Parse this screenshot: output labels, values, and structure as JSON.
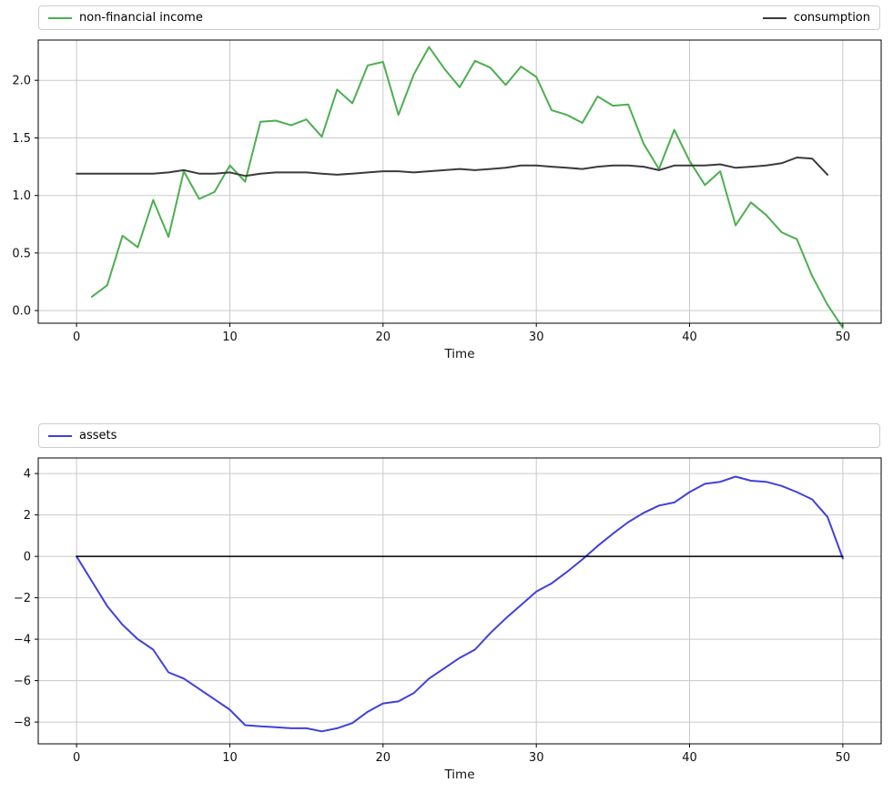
{
  "figure": {
    "background": "#ffffff"
  },
  "chart_data": [
    {
      "name": "income-and-consumption",
      "type": "line",
      "xlabel": "Time",
      "xlim": [
        -2.5,
        52.5
      ],
      "ylim": [
        -0.11,
        2.35
      ],
      "xticks": [
        0,
        10,
        20,
        30,
        40,
        50
      ],
      "xtick_labels": [
        "0",
        "10",
        "20",
        "30",
        "40",
        "50"
      ],
      "yticks": [
        0.0,
        0.5,
        1.0,
        1.5,
        2.0
      ],
      "ytick_labels": [
        "0.0",
        "0.5",
        "1.0",
        "1.5",
        "2.0"
      ],
      "grid": true,
      "grid_color": "#c9c9c9",
      "legend_position": "top-expanded",
      "legend": [
        {
          "label": "non-financial income",
          "color": "#4caf50"
        },
        {
          "label": "consumption",
          "color": "#3b3b3b"
        }
      ],
      "series": [
        {
          "name": "non-financial income",
          "color": "#4caf50",
          "width": 2,
          "x": [
            1,
            2,
            3,
            4,
            5,
            6,
            7,
            8,
            9,
            10,
            11,
            12,
            13,
            14,
            15,
            16,
            17,
            18,
            19,
            20,
            21,
            22,
            23,
            24,
            25,
            26,
            27,
            28,
            29,
            30,
            31,
            32,
            33,
            34,
            35,
            36,
            37,
            38,
            39,
            40,
            41,
            42,
            43,
            44,
            45,
            46,
            47,
            48,
            49,
            50
          ],
          "y": [
            0.12,
            0.22,
            0.65,
            0.55,
            0.96,
            0.64,
            1.21,
            0.97,
            1.03,
            1.26,
            1.12,
            1.64,
            1.65,
            1.61,
            1.66,
            1.51,
            1.92,
            1.8,
            2.13,
            2.16,
            1.7,
            2.05,
            2.29,
            2.1,
            1.94,
            2.17,
            2.11,
            1.96,
            2.12,
            2.03,
            1.74,
            1.7,
            1.63,
            1.86,
            1.78,
            1.79,
            1.45,
            1.23,
            1.57,
            1.3,
            1.09,
            1.21,
            0.74,
            0.94,
            0.83,
            0.68,
            0.62,
            0.3,
            0.05,
            -0.15
          ]
        },
        {
          "name": "consumption",
          "color": "#3b3b3b",
          "width": 2,
          "x": [
            0,
            1,
            2,
            3,
            4,
            5,
            6,
            7,
            8,
            9,
            10,
            11,
            12,
            13,
            14,
            15,
            16,
            17,
            18,
            19,
            20,
            21,
            22,
            23,
            24,
            25,
            26,
            27,
            28,
            29,
            30,
            31,
            32,
            33,
            34,
            35,
            36,
            37,
            38,
            39,
            40,
            41,
            42,
            43,
            44,
            45,
            46,
            47,
            48,
            49
          ],
          "y": [
            1.19,
            1.19,
            1.19,
            1.19,
            1.19,
            1.19,
            1.2,
            1.22,
            1.19,
            1.19,
            1.2,
            1.17,
            1.19,
            1.2,
            1.2,
            1.2,
            1.19,
            1.18,
            1.19,
            1.2,
            1.21,
            1.21,
            1.2,
            1.21,
            1.22,
            1.23,
            1.22,
            1.23,
            1.24,
            1.26,
            1.26,
            1.25,
            1.24,
            1.23,
            1.25,
            1.26,
            1.26,
            1.25,
            1.22,
            1.26,
            1.26,
            1.26,
            1.27,
            1.24,
            1.25,
            1.26,
            1.28,
            1.33,
            1.32,
            1.18
          ]
        }
      ]
    },
    {
      "name": "assets",
      "type": "line",
      "xlabel": "Time",
      "xlim": [
        -2.5,
        52.5
      ],
      "ylim": [
        -9.05,
        4.75
      ],
      "xticks": [
        0,
        10,
        20,
        30,
        40,
        50
      ],
      "xtick_labels": [
        "0",
        "10",
        "20",
        "30",
        "40",
        "50"
      ],
      "yticks": [
        -8,
        -6,
        -4,
        -2,
        0,
        2,
        4
      ],
      "ytick_labels": [
        "−8",
        "−6",
        "−4",
        "−2",
        "0",
        "2",
        "4"
      ],
      "grid": true,
      "grid_color": "#c9c9c9",
      "legend_position": "top-expanded",
      "legend": [
        {
          "label": "assets",
          "color": "#4040dd"
        }
      ],
      "series": [
        {
          "name": "assets",
          "color": "#4040dd",
          "width": 2,
          "x": [
            0,
            1,
            2,
            3,
            4,
            5,
            6,
            7,
            8,
            9,
            10,
            11,
            12,
            13,
            14,
            15,
            16,
            17,
            18,
            19,
            20,
            21,
            22,
            23,
            24,
            25,
            26,
            27,
            28,
            29,
            30,
            31,
            32,
            33,
            34,
            35,
            36,
            37,
            38,
            39,
            40,
            41,
            42,
            43,
            44,
            45,
            46,
            47,
            48,
            49,
            50
          ],
          "y": [
            0.0,
            -1.2,
            -2.4,
            -3.3,
            -4.0,
            -4.5,
            -5.6,
            -5.9,
            -6.4,
            -6.9,
            -7.4,
            -8.15,
            -8.2,
            -8.25,
            -8.3,
            -8.3,
            -8.45,
            -8.3,
            -8.05,
            -7.5,
            -7.1,
            -7.0,
            -6.6,
            -5.9,
            -5.4,
            -4.9,
            -4.5,
            -3.7,
            -3.0,
            -2.35,
            -1.7,
            -1.3,
            -0.75,
            -0.15,
            0.5,
            1.1,
            1.65,
            2.1,
            2.45,
            2.6,
            3.1,
            3.5,
            3.6,
            3.85,
            3.65,
            3.6,
            3.4,
            3.1,
            2.75,
            1.9,
            -0.1
          ]
        },
        {
          "name": "zero-line",
          "color": "#000000",
          "width": 1.5,
          "x": [
            0,
            50
          ],
          "y": [
            0,
            0
          ]
        }
      ]
    }
  ]
}
